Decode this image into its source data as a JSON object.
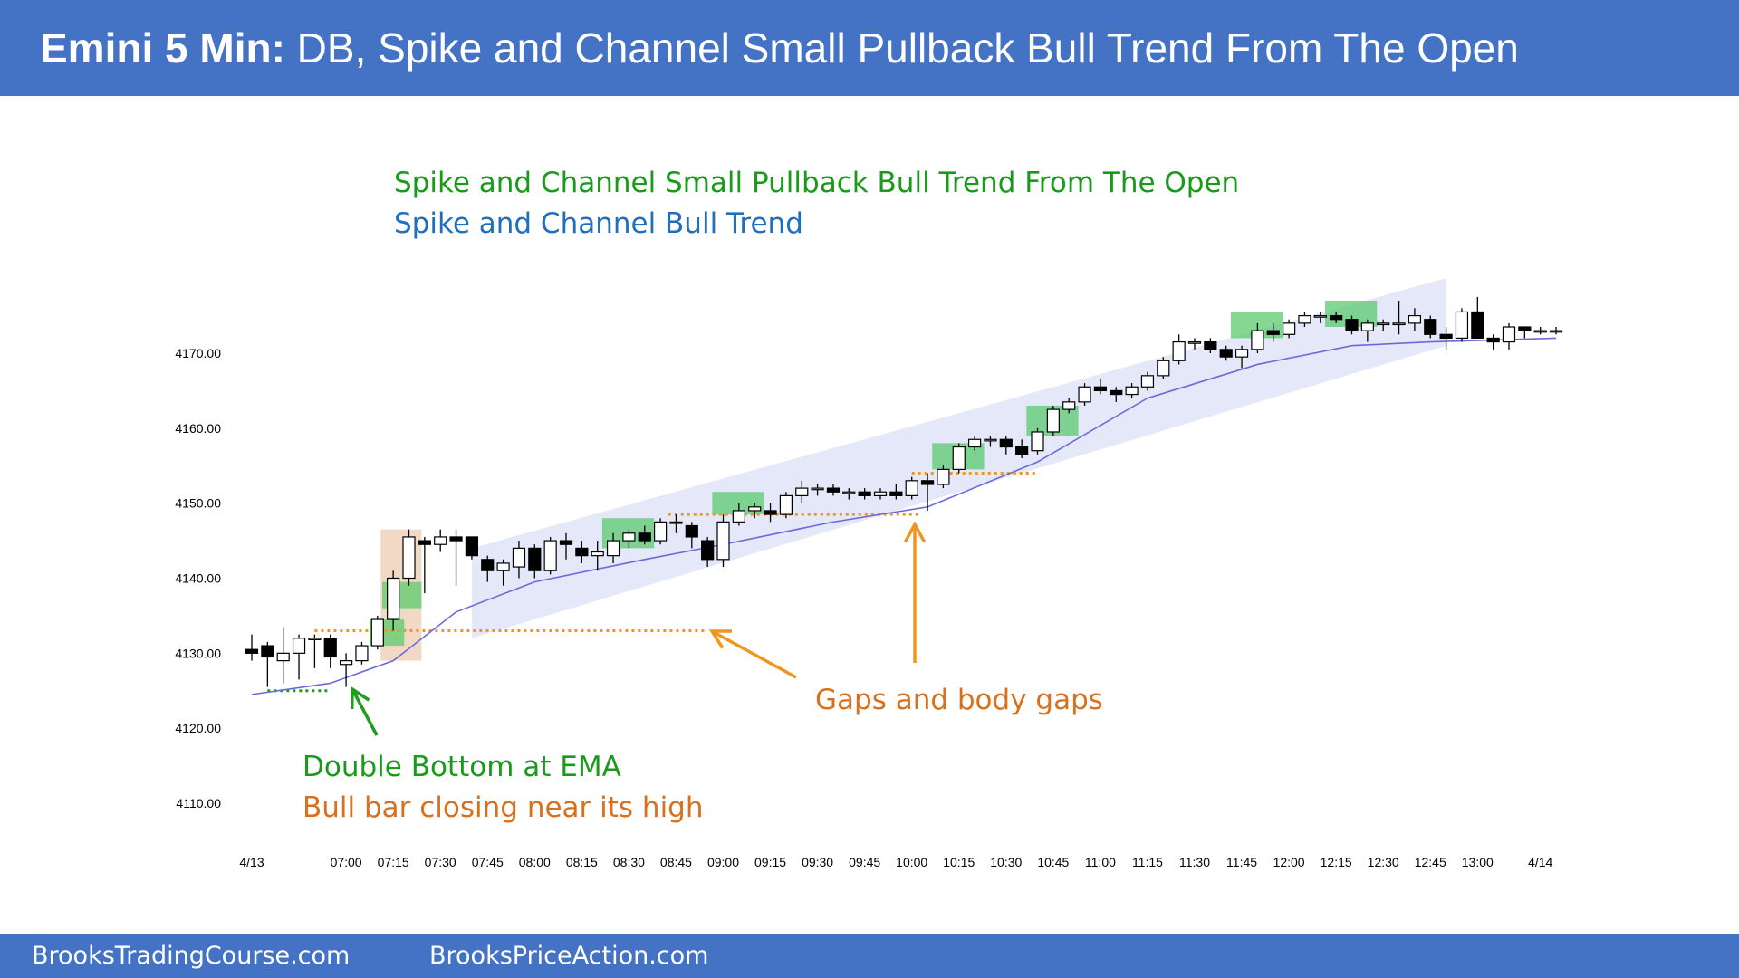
{
  "header": {
    "title_bold": "Emini 5 Min:",
    "title_rest": " DB, Spike and Channel Small Pullback Bull Trend From The Open"
  },
  "annotations": {
    "headline_green": "Spike and Channel Small Pullback Bull Trend From The Open",
    "headline_blue": "Spike and Channel Bull Trend",
    "gaps": "Gaps and body gaps",
    "double_bottom": "Double Bottom at EMA",
    "bull_bar": "Bull bar closing near its high"
  },
  "footer": {
    "link1": "BrooksTradingCourse.com",
    "link2": "BrooksPriceAction.com"
  },
  "colors": {
    "header_bg": "#4472c4",
    "green_text": "#1a9a1a",
    "blue_text": "#1f6fbf",
    "orange_text": "#d9701c",
    "arrow_orange": "#f0951e",
    "arrow_green": "#1e9e1e",
    "channel_fill": "#dfe4f8",
    "highlight_green": "#5ccb6e",
    "highlight_tan": "#efcfb6",
    "ema_line": "#6b6bd8"
  },
  "chart_data": {
    "type": "candlestick",
    "title": "",
    "ylim": [
      4105,
      4182
    ],
    "yticks": [
      "4170.00",
      "4160.00",
      "4150.00",
      "4140.00",
      "4130.00",
      "4120.00",
      "4110.00"
    ],
    "ytick_values": [
      4170,
      4160,
      4150,
      4140,
      4130,
      4120,
      4110
    ],
    "xticks": [
      {
        "label": "4/13",
        "bar": 0
      },
      {
        "label": "07:00",
        "bar": 6
      },
      {
        "label": "07:15",
        "bar": 9
      },
      {
        "label": "07:30",
        "bar": 12
      },
      {
        "label": "07:45",
        "bar": 15
      },
      {
        "label": "08:00",
        "bar": 18
      },
      {
        "label": "08:15",
        "bar": 21
      },
      {
        "label": "08:30",
        "bar": 24
      },
      {
        "label": "08:45",
        "bar": 27
      },
      {
        "label": "09:00",
        "bar": 30
      },
      {
        "label": "09:15",
        "bar": 33
      },
      {
        "label": "09:30",
        "bar": 36
      },
      {
        "label": "09:45",
        "bar": 39
      },
      {
        "label": "10:00",
        "bar": 42
      },
      {
        "label": "10:15",
        "bar": 45
      },
      {
        "label": "10:30",
        "bar": 48
      },
      {
        "label": "10:45",
        "bar": 51
      },
      {
        "label": "11:00",
        "bar": 54
      },
      {
        "label": "11:15",
        "bar": 57
      },
      {
        "label": "11:30",
        "bar": 60
      },
      {
        "label": "11:45",
        "bar": 63
      },
      {
        "label": "12:00",
        "bar": 66
      },
      {
        "label": "12:15",
        "bar": 69
      },
      {
        "label": "12:30",
        "bar": 72
      },
      {
        "label": "12:45",
        "bar": 75
      },
      {
        "label": "13:00",
        "bar": 78
      },
      {
        "label": "4/14",
        "bar": 82
      }
    ],
    "bars": [
      {
        "o": 4130.5,
        "h": 4132.5,
        "l": 4129,
        "c": 4130
      },
      {
        "o": 4131,
        "h": 4131.5,
        "l": 4125.5,
        "c": 4129.5
      },
      {
        "o": 4129,
        "h": 4133.5,
        "l": 4126,
        "c": 4130
      },
      {
        "o": 4130,
        "h": 4132.5,
        "l": 4126.5,
        "c": 4132
      },
      {
        "o": 4132,
        "h": 4132.5,
        "l": 4128,
        "c": 4132
      },
      {
        "o": 4132,
        "h": 4132.5,
        "l": 4128,
        "c": 4129.5
      },
      {
        "o": 4128.5,
        "h": 4130,
        "l": 4125.5,
        "c": 4129
      },
      {
        "o": 4129,
        "h": 4131.5,
        "l": 4128.5,
        "c": 4131
      },
      {
        "o": 4131,
        "h": 4135,
        "l": 4130.5,
        "c": 4134.5
      },
      {
        "o": 4134.5,
        "h": 4141,
        "l": 4133,
        "c": 4140
      },
      {
        "o": 4140,
        "h": 4146.5,
        "l": 4139,
        "c": 4145.5
      },
      {
        "o": 4145,
        "h": 4145.5,
        "l": 4138,
        "c": 4144.5
      },
      {
        "o": 4144.5,
        "h": 4146.5,
        "l": 4143.5,
        "c": 4145.5
      },
      {
        "o": 4145.5,
        "h": 4146.5,
        "l": 4139,
        "c": 4145
      },
      {
        "o": 4145.5,
        "h": 4145.5,
        "l": 4142.5,
        "c": 4143
      },
      {
        "o": 4142.5,
        "h": 4143,
        "l": 4139.5,
        "c": 4141
      },
      {
        "o": 4141,
        "h": 4142.5,
        "l": 4139,
        "c": 4142
      },
      {
        "o": 4141.5,
        "h": 4145,
        "l": 4140,
        "c": 4144
      },
      {
        "o": 4144,
        "h": 4144.5,
        "l": 4140,
        "c": 4141
      },
      {
        "o": 4141,
        "h": 4145.5,
        "l": 4140.5,
        "c": 4145
      },
      {
        "o": 4145,
        "h": 4146,
        "l": 4142.5,
        "c": 4144.5
      },
      {
        "o": 4144,
        "h": 4145,
        "l": 4142,
        "c": 4143
      },
      {
        "o": 4143,
        "h": 4145,
        "l": 4141,
        "c": 4143.5
      },
      {
        "o": 4143,
        "h": 4146,
        "l": 4142,
        "c": 4145
      },
      {
        "o": 4145,
        "h": 4146.5,
        "l": 4144,
        "c": 4146
      },
      {
        "o": 4146,
        "h": 4147,
        "l": 4144.5,
        "c": 4145
      },
      {
        "o": 4145,
        "h": 4148,
        "l": 4144.5,
        "c": 4147.5
      },
      {
        "o": 4147.5,
        "h": 4148.5,
        "l": 4146,
        "c": 4147.5
      },
      {
        "o": 4147,
        "h": 4147.5,
        "l": 4144,
        "c": 4145.5
      },
      {
        "o": 4145,
        "h": 4145.5,
        "l": 4141.5,
        "c": 4142.5
      },
      {
        "o": 4142.5,
        "h": 4148.5,
        "l": 4141.5,
        "c": 4147.5
      },
      {
        "o": 4147.5,
        "h": 4150,
        "l": 4147,
        "c": 4149
      },
      {
        "o": 4149,
        "h": 4150,
        "l": 4148,
        "c": 4149.5
      },
      {
        "o": 4149,
        "h": 4150,
        "l": 4147.5,
        "c": 4148.5
      },
      {
        "o": 4148.5,
        "h": 4151.5,
        "l": 4148,
        "c": 4151
      },
      {
        "o": 4151,
        "h": 4153,
        "l": 4150,
        "c": 4152
      },
      {
        "o": 4152,
        "h": 4152.5,
        "l": 4151,
        "c": 4152
      },
      {
        "o": 4152,
        "h": 4152.5,
        "l": 4151,
        "c": 4151.5
      },
      {
        "o": 4151.5,
        "h": 4152,
        "l": 4150.5,
        "c": 4151.5
      },
      {
        "o": 4151.5,
        "h": 4152,
        "l": 4150.5,
        "c": 4151
      },
      {
        "o": 4151,
        "h": 4152,
        "l": 4150.5,
        "c": 4151.5
      },
      {
        "o": 4151.5,
        "h": 4152.5,
        "l": 4150.5,
        "c": 4151
      },
      {
        "o": 4151,
        "h": 4153.5,
        "l": 4150.5,
        "c": 4153
      },
      {
        "o": 4153,
        "h": 4154,
        "l": 4149,
        "c": 4152.5
      },
      {
        "o": 4152.5,
        "h": 4155,
        "l": 4152,
        "c": 4154.5
      },
      {
        "o": 4154.5,
        "h": 4158,
        "l": 4154,
        "c": 4157.5
      },
      {
        "o": 4157.5,
        "h": 4159,
        "l": 4157,
        "c": 4158.5
      },
      {
        "o": 4158.5,
        "h": 4159,
        "l": 4157.5,
        "c": 4158.5
      },
      {
        "o": 4158.5,
        "h": 4159,
        "l": 4156.5,
        "c": 4157.5
      },
      {
        "o": 4157.5,
        "h": 4158.5,
        "l": 4156,
        "c": 4156.5
      },
      {
        "o": 4157,
        "h": 4160,
        "l": 4156.5,
        "c": 4159.5
      },
      {
        "o": 4159.5,
        "h": 4163,
        "l": 4159,
        "c": 4162.5
      },
      {
        "o": 4162.5,
        "h": 4164,
        "l": 4162,
        "c": 4163.5
      },
      {
        "o": 4163.5,
        "h": 4166,
        "l": 4163,
        "c": 4165.5
      },
      {
        "o": 4165.5,
        "h": 4166.5,
        "l": 4164.5,
        "c": 4165
      },
      {
        "o": 4165,
        "h": 4165.5,
        "l": 4163.5,
        "c": 4164.5
      },
      {
        "o": 4164.5,
        "h": 4166,
        "l": 4164,
        "c": 4165.5
      },
      {
        "o": 4165.5,
        "h": 4167.5,
        "l": 4165,
        "c": 4167
      },
      {
        "o": 4167,
        "h": 4169.5,
        "l": 4166.5,
        "c": 4169
      },
      {
        "o": 4169,
        "h": 4172.5,
        "l": 4168.5,
        "c": 4171.5
      },
      {
        "o": 4171.5,
        "h": 4172,
        "l": 4170.5,
        "c": 4171.5
      },
      {
        "o": 4171.5,
        "h": 4172,
        "l": 4170,
        "c": 4170.5
      },
      {
        "o": 4170.5,
        "h": 4171,
        "l": 4169,
        "c": 4169.5
      },
      {
        "o": 4169.5,
        "h": 4171,
        "l": 4168,
        "c": 4170.5
      },
      {
        "o": 4170.5,
        "h": 4174,
        "l": 4170,
        "c": 4173
      },
      {
        "o": 4173,
        "h": 4174,
        "l": 4171.5,
        "c": 4172.5
      },
      {
        "o": 4172.5,
        "h": 4174.5,
        "l": 4172,
        "c": 4174
      },
      {
        "o": 4174,
        "h": 4175.5,
        "l": 4173.5,
        "c": 4175
      },
      {
        "o": 4175,
        "h": 4175.5,
        "l": 4174,
        "c": 4175
      },
      {
        "o": 4175,
        "h": 4175.5,
        "l": 4174,
        "c": 4174.5
      },
      {
        "o": 4174.5,
        "h": 4175,
        "l": 4172.5,
        "c": 4173
      },
      {
        "o": 4173,
        "h": 4174.5,
        "l": 4171.5,
        "c": 4174
      },
      {
        "o": 4174,
        "h": 4174.5,
        "l": 4173,
        "c": 4174
      },
      {
        "o": 4174,
        "h": 4177,
        "l": 4172.5,
        "c": 4174
      },
      {
        "o": 4174,
        "h": 4176,
        "l": 4173,
        "c": 4175
      },
      {
        "o": 4174.5,
        "h": 4175,
        "l": 4172,
        "c": 4172.5
      },
      {
        "o": 4172.5,
        "h": 4173.5,
        "l": 4170.5,
        "c": 4172
      },
      {
        "o": 4172,
        "h": 4176,
        "l": 4171.5,
        "c": 4175.5
      },
      {
        "o": 4175.5,
        "h": 4177.5,
        "l": 4172,
        "c": 4172
      },
      {
        "o": 4172,
        "h": 4172.5,
        "l": 4170.5,
        "c": 4171.5
      },
      {
        "o": 4171.5,
        "h": 4174,
        "l": 4170.5,
        "c": 4173.5
      },
      {
        "o": 4173.5,
        "h": 4173.5,
        "l": 4172,
        "c": 4173
      },
      {
        "o": 4173,
        "h": 4173.5,
        "l": 4172.5,
        "c": 4173
      },
      {
        "o": 4173,
        "h": 4173.5,
        "l": 4172.5,
        "c": 4173
      }
    ],
    "ema": [
      {
        "bar": 0,
        "v": 4124.5
      },
      {
        "bar": 5,
        "v": 4126
      },
      {
        "bar": 9,
        "v": 4129
      },
      {
        "bar": 13,
        "v": 4135.5
      },
      {
        "bar": 18,
        "v": 4139.5
      },
      {
        "bar": 25,
        "v": 4142.5
      },
      {
        "bar": 30,
        "v": 4144.5
      },
      {
        "bar": 37,
        "v": 4147.5
      },
      {
        "bar": 43,
        "v": 4149.5
      },
      {
        "bar": 50,
        "v": 4155.5
      },
      {
        "bar": 57,
        "v": 4164
      },
      {
        "bar": 64,
        "v": 4168.5
      },
      {
        "bar": 70,
        "v": 4171
      },
      {
        "bar": 75,
        "v": 4171.5
      },
      {
        "bar": 83,
        "v": 4172
      }
    ],
    "channel": {
      "start_bar": 14,
      "end_bar": 76,
      "upper": [
        4144,
        4180
      ],
      "lower": [
        4132,
        4171
      ]
    },
    "spike_box": {
      "from_bar": 8.2,
      "to_bar": 10.8,
      "low": 4129,
      "high": 4146.5
    },
    "green_boxes": [
      {
        "from_bar": 7.5,
        "to_bar": 9.7,
        "low": 4131,
        "high": 4134.5
      },
      {
        "from_bar": 8.3,
        "to_bar": 10.8,
        "low": 4136,
        "high": 4139.5
      },
      {
        "from_bar": 22.3,
        "to_bar": 25.6,
        "low": 4144,
        "high": 4148
      },
      {
        "from_bar": 29.3,
        "to_bar": 32.6,
        "low": 4148.5,
        "high": 4151.5
      },
      {
        "from_bar": 43.3,
        "to_bar": 46.6,
        "low": 4154.5,
        "high": 4158
      },
      {
        "from_bar": 49.3,
        "to_bar": 52.6,
        "low": 4159,
        "high": 4163
      },
      {
        "from_bar": 62.3,
        "to_bar": 65.6,
        "low": 4172,
        "high": 4175.5
      },
      {
        "from_bar": 68.3,
        "to_bar": 71.6,
        "low": 4173.5,
        "high": 4177
      }
    ],
    "level_lines": [
      {
        "color": "green",
        "from_bar": 1,
        "to_bar": 5,
        "y": 4125
      },
      {
        "color": "orange",
        "from_bar": 4,
        "to_bar": 29,
        "y": 4133
      },
      {
        "color": "orange",
        "from_bar": 26.5,
        "to_bar": 42.5,
        "y": 4148.5
      },
      {
        "color": "orange",
        "from_bar": 42,
        "to_bar": 50,
        "y": 4154
      }
    ]
  }
}
